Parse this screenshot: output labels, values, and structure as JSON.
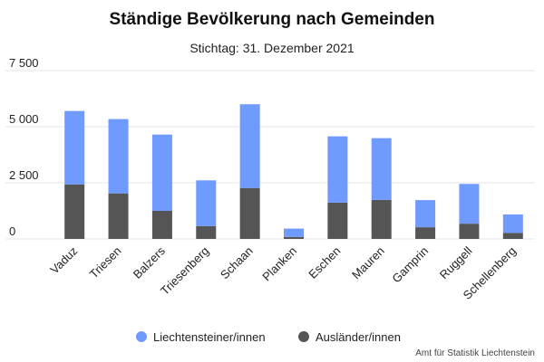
{
  "chart_data": {
    "type": "bar",
    "stacked": true,
    "title": "Ständige Bevölkerung nach Gemeinden",
    "subtitle": "Stichtag: 31. Dezember 2021",
    "credit": "Amt für Statistik Liechtenstein",
    "categories": [
      "Vaduz",
      "Triesen",
      "Balzers",
      "Triesenberg",
      "Schaan",
      "Planken",
      "Eschen",
      "Mauren",
      "Gamprin",
      "Ruggell",
      "Schellenberg"
    ],
    "series": [
      {
        "name": "Ausländer/innen",
        "color": "#555555",
        "values": [
          2430,
          2030,
          1250,
          570,
          2270,
          90,
          1620,
          1740,
          520,
          680,
          270
        ]
      },
      {
        "name": "Liechtensteiner/innen",
        "color": "#6f9bff",
        "values": [
          3270,
          3310,
          3400,
          2040,
          3730,
          370,
          2950,
          2750,
          1210,
          1770,
          820
        ]
      }
    ],
    "legend_order": [
      "Liechtensteiner/innen",
      "Ausländer/innen"
    ],
    "legend_position": "bottom",
    "yticks": [
      0,
      2500,
      5000,
      7500
    ],
    "ytick_labels": [
      "0",
      "2 500",
      "5 000",
      "7 500"
    ],
    "ylim": [
      0,
      7500
    ],
    "grid": true,
    "xlabel": "",
    "ylabel": ""
  }
}
